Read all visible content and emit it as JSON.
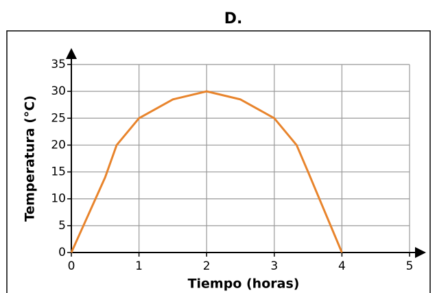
{
  "chart_data": {
    "type": "line",
    "title": "D.",
    "x_label": "Tiempo (horas)",
    "y_label": "Temperatura (°C)",
    "series": [
      {
        "name": "Temperatura",
        "color": "#e8842c",
        "x": [
          0,
          0.25,
          0.5,
          0.67,
          1,
          1.5,
          2,
          2.5,
          3,
          3.33,
          3.5,
          3.75,
          4
        ],
        "values": [
          0,
          7,
          14,
          20,
          25,
          28.5,
          30,
          28.5,
          25,
          20,
          15,
          7.5,
          0
        ]
      }
    ],
    "xlim": [
      0,
      5
    ],
    "xticks": [
      0,
      1,
      2,
      3,
      4,
      5
    ],
    "ylim": [
      0,
      35
    ],
    "yticks": [
      0,
      5,
      10,
      15,
      20,
      25,
      30,
      35
    ],
    "grid": true
  }
}
